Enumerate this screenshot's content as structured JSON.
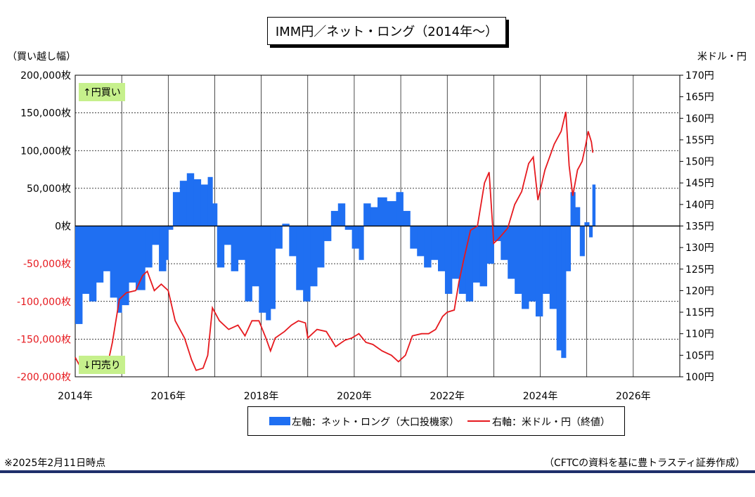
{
  "title": "IMM円／ネット・ロング（2014年～）",
  "left_unit": "（買い越し幅）",
  "right_unit": "米ドル・円",
  "buy_label": "↑円買い",
  "sell_label": "↓円売り",
  "legend": {
    "bar_label": "左軸：ネット・ロング（大口投機家）",
    "line_label": "右軸：米ドル・円（終値）"
  },
  "footnote": "※2025年2月11日時点",
  "source": "（CFTCの資料を基に豊トラスティ証券作成）",
  "colors": {
    "bar": "#1f6ff2",
    "line": "#e6191e",
    "grid": "#000000",
    "tag_bg": "#c6f08c",
    "negative_tick": "#e6191e"
  },
  "chart_data": {
    "type": "bar+line",
    "x_range": [
      2014,
      2027
    ],
    "x_ticks": [
      "2014年",
      "2016年",
      "2018年",
      "2020年",
      "2022年",
      "2024年",
      "2026年"
    ],
    "x_tick_values": [
      2014,
      2016,
      2018,
      2020,
      2022,
      2024,
      2026
    ],
    "y_left": {
      "range": [
        -200000,
        200000
      ],
      "ticks": [
        200000,
        150000,
        100000,
        50000,
        0,
        -50000,
        -100000,
        -150000,
        -200000
      ],
      "tick_labels": [
        "200,000枚",
        "150,000枚",
        "100,000枚",
        "50,000枚",
        "0枚",
        "-50,000枚",
        "-100,000枚",
        "-150,000枚",
        "-200,000枚"
      ]
    },
    "y_right": {
      "range": [
        100,
        170
      ],
      "ticks": [
        170,
        165,
        160,
        155,
        150,
        145,
        140,
        135,
        130,
        125,
        120,
        115,
        110,
        105,
        100
      ],
      "tick_labels": [
        "170円",
        "165円",
        "160円",
        "155円",
        "150円",
        "145円",
        "140円",
        "135円",
        "130円",
        "125円",
        "120円",
        "115円",
        "110円",
        "105円",
        "100円"
      ]
    },
    "grid": true,
    "series": [
      {
        "name": "左軸：ネット・ロング（大口投機家）",
        "axis": "left",
        "type": "bar",
        "points": [
          [
            2014.0,
            -130000
          ],
          [
            2014.15,
            -90000
          ],
          [
            2014.3,
            -100000
          ],
          [
            2014.45,
            -75000
          ],
          [
            2014.6,
            -60000
          ],
          [
            2014.75,
            -95000
          ],
          [
            2014.9,
            -115000
          ],
          [
            2015.0,
            -105000
          ],
          [
            2015.15,
            -75000
          ],
          [
            2015.3,
            -85000
          ],
          [
            2015.5,
            -55000
          ],
          [
            2015.65,
            -25000
          ],
          [
            2015.8,
            -60000
          ],
          [
            2015.95,
            -45000
          ],
          [
            2016.0,
            -5000
          ],
          [
            2016.1,
            45000
          ],
          [
            2016.25,
            60000
          ],
          [
            2016.4,
            70000
          ],
          [
            2016.55,
            62000
          ],
          [
            2016.7,
            55000
          ],
          [
            2016.85,
            65000
          ],
          [
            2016.95,
            30000
          ],
          [
            2017.05,
            -55000
          ],
          [
            2017.2,
            -25000
          ],
          [
            2017.35,
            -60000
          ],
          [
            2017.5,
            -45000
          ],
          [
            2017.65,
            -100000
          ],
          [
            2017.8,
            -80000
          ],
          [
            2017.95,
            -115000
          ],
          [
            2018.1,
            -125000
          ],
          [
            2018.2,
            -110000
          ],
          [
            2018.3,
            -30000
          ],
          [
            2018.45,
            3000
          ],
          [
            2018.6,
            -40000
          ],
          [
            2018.75,
            -85000
          ],
          [
            2018.9,
            -100000
          ],
          [
            2019.05,
            -80000
          ],
          [
            2019.2,
            -55000
          ],
          [
            2019.35,
            -20000
          ],
          [
            2019.5,
            20000
          ],
          [
            2019.65,
            30000
          ],
          [
            2019.8,
            -5000
          ],
          [
            2019.95,
            -30000
          ],
          [
            2020.1,
            -45000
          ],
          [
            2020.2,
            30000
          ],
          [
            2020.35,
            25000
          ],
          [
            2020.5,
            38000
          ],
          [
            2020.7,
            33000
          ],
          [
            2020.9,
            45000
          ],
          [
            2021.05,
            20000
          ],
          [
            2021.2,
            -30000
          ],
          [
            2021.35,
            -40000
          ],
          [
            2021.5,
            -55000
          ],
          [
            2021.65,
            -45000
          ],
          [
            2021.8,
            -60000
          ],
          [
            2021.95,
            -90000
          ],
          [
            2022.1,
            -70000
          ],
          [
            2022.25,
            -90000
          ],
          [
            2022.4,
            -100000
          ],
          [
            2022.55,
            -75000
          ],
          [
            2022.7,
            -80000
          ],
          [
            2022.85,
            -50000
          ],
          [
            2023.0,
            -20000
          ],
          [
            2023.15,
            -45000
          ],
          [
            2023.3,
            -70000
          ],
          [
            2023.45,
            -90000
          ],
          [
            2023.6,
            -110000
          ],
          [
            2023.75,
            -100000
          ],
          [
            2023.9,
            -120000
          ],
          [
            2024.05,
            -90000
          ],
          [
            2024.2,
            -110000
          ],
          [
            2024.35,
            -165000
          ],
          [
            2024.45,
            -175000
          ],
          [
            2024.55,
            -60000
          ],
          [
            2024.65,
            45000
          ],
          [
            2024.75,
            25000
          ],
          [
            2024.85,
            -40000
          ],
          [
            2024.95,
            5000
          ],
          [
            2025.05,
            -15000
          ],
          [
            2025.12,
            55000
          ]
        ]
      },
      {
        "name": "右軸：米ドル・円（終値）",
        "axis": "right",
        "type": "line",
        "points": [
          [
            2014.0,
            104.5
          ],
          [
            2014.1,
            102.5
          ],
          [
            2014.3,
            102.0
          ],
          [
            2014.5,
            101.5
          ],
          [
            2014.7,
            103.0
          ],
          [
            2014.8,
            108.0
          ],
          [
            2014.95,
            118.0
          ],
          [
            2015.1,
            119.5
          ],
          [
            2015.3,
            120.0
          ],
          [
            2015.45,
            123.5
          ],
          [
            2015.55,
            124.5
          ],
          [
            2015.7,
            120.0
          ],
          [
            2015.85,
            121.5
          ],
          [
            2016.0,
            120.0
          ],
          [
            2016.15,
            113.0
          ],
          [
            2016.35,
            109.0
          ],
          [
            2016.5,
            104.0
          ],
          [
            2016.6,
            101.5
          ],
          [
            2016.75,
            102.0
          ],
          [
            2016.85,
            105.0
          ],
          [
            2016.95,
            116.0
          ],
          [
            2017.1,
            113.0
          ],
          [
            2017.3,
            111.0
          ],
          [
            2017.5,
            112.0
          ],
          [
            2017.65,
            109.5
          ],
          [
            2017.8,
            113.0
          ],
          [
            2017.95,
            113.0
          ],
          [
            2018.1,
            109.0
          ],
          [
            2018.2,
            106.0
          ],
          [
            2018.3,
            109.0
          ],
          [
            2018.5,
            110.5
          ],
          [
            2018.65,
            112.0
          ],
          [
            2018.8,
            113.0
          ],
          [
            2018.95,
            112.5
          ],
          [
            2019.0,
            109.0
          ],
          [
            2019.2,
            111.0
          ],
          [
            2019.4,
            110.5
          ],
          [
            2019.6,
            107.0
          ],
          [
            2019.8,
            108.5
          ],
          [
            2019.95,
            109.0
          ],
          [
            2020.1,
            110.0
          ],
          [
            2020.25,
            108.0
          ],
          [
            2020.4,
            107.5
          ],
          [
            2020.6,
            106.0
          ],
          [
            2020.8,
            105.0
          ],
          [
            2020.95,
            103.5
          ],
          [
            2021.1,
            105.0
          ],
          [
            2021.25,
            109.5
          ],
          [
            2021.45,
            110.0
          ],
          [
            2021.6,
            110.0
          ],
          [
            2021.75,
            111.0
          ],
          [
            2021.9,
            114.0
          ],
          [
            2022.0,
            115.0
          ],
          [
            2022.15,
            115.5
          ],
          [
            2022.25,
            122.0
          ],
          [
            2022.35,
            127.0
          ],
          [
            2022.5,
            134.0
          ],
          [
            2022.65,
            135.0
          ],
          [
            2022.8,
            145.0
          ],
          [
            2022.9,
            147.5
          ],
          [
            2023.0,
            131.0
          ],
          [
            2023.1,
            132.0
          ],
          [
            2023.3,
            134.5
          ],
          [
            2023.45,
            140.0
          ],
          [
            2023.6,
            143.0
          ],
          [
            2023.75,
            149.5
          ],
          [
            2023.85,
            151.0
          ],
          [
            2023.95,
            141.0
          ],
          [
            2024.1,
            148.0
          ],
          [
            2024.3,
            154.0
          ],
          [
            2024.45,
            157.0
          ],
          [
            2024.55,
            161.5
          ],
          [
            2024.62,
            149.0
          ],
          [
            2024.7,
            142.0
          ],
          [
            2024.8,
            148.0
          ],
          [
            2024.9,
            150.0
          ],
          [
            2024.98,
            154.0
          ],
          [
            2025.03,
            157.0
          ],
          [
            2025.1,
            154.5
          ],
          [
            2025.13,
            152.0
          ]
        ]
      }
    ]
  }
}
